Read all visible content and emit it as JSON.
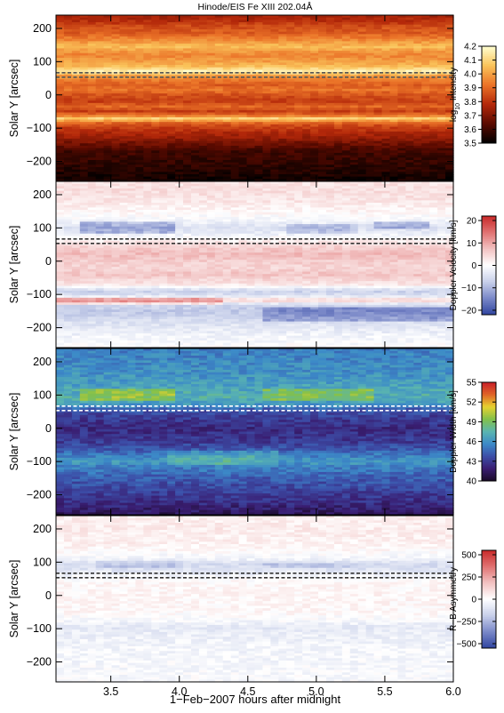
{
  "chart_data": {
    "type": "heatmap",
    "title": "Hinode/EIS Fe XIII 202.04Å",
    "xlabel": "1−Feb−2007 hours after midnight",
    "xlim": [
      3.1,
      6.0
    ],
    "x_ticks": [
      3.5,
      4.0,
      4.5,
      5.0,
      5.5,
      6.0
    ],
    "x_tick_labels": [
      "3.5",
      "4.0",
      "4.5",
      "5.0",
      "5.5",
      "6.0"
    ],
    "ylim": [
      -260,
      240
    ],
    "y_ticks": [
      200,
      100,
      0,
      -100,
      -200
    ],
    "y_tick_labels": [
      "200",
      "100",
      "0",
      "−100",
      "−200"
    ],
    "ylabel": "Solar Y [arcsec]",
    "marker_y": 60,
    "panels": [
      {
        "id": "intensity",
        "colorbar_label": "log10 Intensity",
        "colormap": [
          "#000000",
          "#5a0a00",
          "#b4280a",
          "#eb7328",
          "#fac35a",
          "#ffffd2"
        ],
        "clim": [
          3.5,
          4.2
        ],
        "colorbar_ticks": [
          3.5,
          3.6,
          3.7,
          3.8,
          3.9,
          4.0,
          4.1,
          4.2
        ],
        "colorbar_tick_labels": [
          "3.5",
          "3.6",
          "3.7",
          "3.8",
          "3.9",
          "4.0",
          "4.1",
          "4.2"
        ],
        "marker_color": "#555555",
        "profile": [
          {
            "y": -260,
            "v": 3.52
          },
          {
            "y": -235,
            "v": 3.55
          },
          {
            "y": -200,
            "v": 3.58
          },
          {
            "y": -170,
            "v": 3.6
          },
          {
            "y": -150,
            "v": 3.66
          },
          {
            "y": -130,
            "v": 3.73
          },
          {
            "y": -110,
            "v": 3.78
          },
          {
            "y": -95,
            "v": 3.83
          },
          {
            "y": -82,
            "v": 3.91
          },
          {
            "y": -72,
            "v": 4.12
          },
          {
            "y": -64,
            "v": 3.95
          },
          {
            "y": -50,
            "v": 3.82
          },
          {
            "y": -35,
            "v": 3.9
          },
          {
            "y": -20,
            "v": 3.82
          },
          {
            "y": 0,
            "v": 3.86
          },
          {
            "y": 15,
            "v": 3.92
          },
          {
            "y": 30,
            "v": 3.88
          },
          {
            "y": 45,
            "v": 3.93
          },
          {
            "y": 58,
            "v": 4.0
          },
          {
            "y": 70,
            "v": 4.18
          },
          {
            "y": 85,
            "v": 4.05
          },
          {
            "y": 100,
            "v": 4.0
          },
          {
            "y": 120,
            "v": 3.95
          },
          {
            "y": 145,
            "v": 4.05
          },
          {
            "y": 165,
            "v": 3.96
          },
          {
            "y": 185,
            "v": 3.88
          },
          {
            "y": 205,
            "v": 3.85
          },
          {
            "y": 225,
            "v": 3.78
          },
          {
            "y": 240,
            "v": 3.75
          }
        ],
        "features": [],
        "noise": 0.035
      },
      {
        "id": "velocity",
        "colorbar_label": "Doppler Velocity [km/s]",
        "colormap": [
          "#3045a0",
          "#7a88c8",
          "#c8d0ea",
          "#ffffff",
          "#f2c2c2",
          "#e07272",
          "#c82828"
        ],
        "clim": [
          -22,
          22
        ],
        "colorbar_ticks": [
          20,
          10,
          0,
          -10,
          -20
        ],
        "colorbar_tick_labels": [
          "20",
          "10",
          "0",
          "−10",
          "−20"
        ],
        "marker_color": "#333333",
        "profile": [
          {
            "y": -260,
            "v": 0
          },
          {
            "y": -220,
            "v": -2
          },
          {
            "y": -180,
            "v": -5
          },
          {
            "y": -150,
            "v": -8
          },
          {
            "y": -130,
            "v": -6
          },
          {
            "y": -118,
            "v": 7
          },
          {
            "y": -105,
            "v": -4
          },
          {
            "y": -90,
            "v": -7
          },
          {
            "y": -70,
            "v": 3
          },
          {
            "y": -40,
            "v": 7
          },
          {
            "y": -20,
            "v": 5
          },
          {
            "y": 0,
            "v": 6
          },
          {
            "y": 20,
            "v": 8
          },
          {
            "y": 40,
            "v": 6
          },
          {
            "y": 55,
            "v": 3
          },
          {
            "y": 70,
            "v": 0
          },
          {
            "y": 85,
            "v": -3
          },
          {
            "y": 100,
            "v": -5
          },
          {
            "y": 125,
            "v": -1
          },
          {
            "y": 150,
            "v": 1
          },
          {
            "y": 180,
            "v": 3
          },
          {
            "y": 210,
            "v": 4
          },
          {
            "y": 240,
            "v": 3
          }
        ],
        "features": [
          {
            "x0": 3.25,
            "x1": 3.95,
            "y0": 80,
            "y1": 120,
            "dv": -8
          },
          {
            "x0": 4.8,
            "x1": 5.3,
            "y0": 80,
            "y1": 110,
            "dv": -6
          },
          {
            "x0": 5.4,
            "x1": 5.8,
            "y0": 95,
            "y1": 120,
            "dv": -8
          },
          {
            "x0": 4.6,
            "x1": 6.0,
            "y0": -180,
            "y1": -140,
            "dv": -8
          },
          {
            "x0": 3.1,
            "x1": 4.3,
            "y0": -130,
            "y1": -110,
            "dv": 8
          }
        ],
        "noise": 1.8
      },
      {
        "id": "width",
        "colorbar_label": "Doppler Width [km/s]",
        "colormap": [
          "#1a0a28",
          "#3a1e72",
          "#3c4ea8",
          "#3c8ac8",
          "#5ab5b0",
          "#82c04a",
          "#e6d230",
          "#e06428",
          "#c81e28"
        ],
        "clim": [
          40,
          55
        ],
        "colorbar_ticks": [
          40,
          43,
          46,
          49,
          52,
          55
        ],
        "colorbar_tick_labels": [
          "40",
          "43",
          "46",
          "49",
          "52",
          "55"
        ],
        "marker_color": "#ffffff",
        "profile": [
          {
            "y": -260,
            "v": 41.2
          },
          {
            "y": -220,
            "v": 42.5
          },
          {
            "y": -180,
            "v": 43.5
          },
          {
            "y": -150,
            "v": 44.2
          },
          {
            "y": -120,
            "v": 45.3
          },
          {
            "y": -100,
            "v": 46.2
          },
          {
            "y": -80,
            "v": 45.2
          },
          {
            "y": -60,
            "v": 43.8
          },
          {
            "y": -40,
            "v": 43.0
          },
          {
            "y": -20,
            "v": 42.6
          },
          {
            "y": 0,
            "v": 42.4
          },
          {
            "y": 20,
            "v": 42.8
          },
          {
            "y": 40,
            "v": 43.3
          },
          {
            "y": 55,
            "v": 44.0
          },
          {
            "y": 70,
            "v": 46.0
          },
          {
            "y": 90,
            "v": 47.3
          },
          {
            "y": 110,
            "v": 47.0
          },
          {
            "y": 140,
            "v": 46.3
          },
          {
            "y": 180,
            "v": 45.8
          },
          {
            "y": 210,
            "v": 45.5
          },
          {
            "y": 240,
            "v": 45.3
          }
        ],
        "features": [
          {
            "x0": 3.25,
            "x1": 3.95,
            "y0": 85,
            "y1": 120,
            "dv": 2.8
          },
          {
            "x0": 4.6,
            "x1": 5.4,
            "y0": 85,
            "y1": 115,
            "dv": 2.2
          },
          {
            "x0": 3.9,
            "x1": 4.7,
            "y0": -110,
            "y1": -70,
            "dv": 1.6
          }
        ],
        "noise": 0.9
      },
      {
        "id": "asymmetry",
        "colorbar_label": "R−B Asymmetry",
        "colormap": [
          "#3045a0",
          "#7a88c8",
          "#c8d0ea",
          "#ffffff",
          "#f2c2c2",
          "#e07272",
          "#c82828"
        ],
        "clim": [
          -550,
          550
        ],
        "colorbar_ticks": [
          500,
          250,
          0,
          -250,
          -500
        ],
        "colorbar_tick_labels": [
          "500",
          "250",
          "0",
          "−250",
          "−500"
        ],
        "marker_color": "#333333",
        "profile": [
          {
            "y": -260,
            "v": -20
          },
          {
            "y": -200,
            "v": -30
          },
          {
            "y": -150,
            "v": -40
          },
          {
            "y": -110,
            "v": -70
          },
          {
            "y": -95,
            "v": -90
          },
          {
            "y": -75,
            "v": -20
          },
          {
            "y": -50,
            "v": 20
          },
          {
            "y": 0,
            "v": 30
          },
          {
            "y": 40,
            "v": 20
          },
          {
            "y": 60,
            "v": -40
          },
          {
            "y": 80,
            "v": -120
          },
          {
            "y": 95,
            "v": -140
          },
          {
            "y": 110,
            "v": -40
          },
          {
            "y": 150,
            "v": 40
          },
          {
            "y": 200,
            "v": 60
          },
          {
            "y": 240,
            "v": 50
          }
        ],
        "features": [
          {
            "x0": 3.4,
            "x1": 4.0,
            "y0": 80,
            "y1": 105,
            "dv": -90
          },
          {
            "x0": 4.6,
            "x1": 5.3,
            "y0": 80,
            "y1": 100,
            "dv": -70
          }
        ],
        "noise": 45
      }
    ]
  }
}
